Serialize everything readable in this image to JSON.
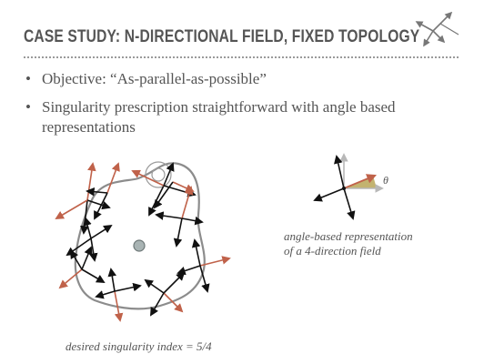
{
  "title": "CASE STUDY: N-DIRECTIONAL FIELD, FIXED TOPOLOGY",
  "bullets": [
    "Objective: “As-parallel-as-possible”",
    "Singularity prescription straightforward with angle based representations"
  ],
  "figure_right": {
    "theta_label": "θ",
    "caption_line1": "angle-based representation",
    "caption_line2": "of a 4-direction field"
  },
  "figure_left": {
    "caption": "desired singularity index = 5/4"
  },
  "colors": {
    "text": "#555555",
    "arrow_black": "#111111",
    "arrow_red": "#c0624a",
    "curve": "#8c8c8c",
    "axis_gray": "#b8b8b8",
    "wedge_fill": "#b8a657"
  },
  "icons": [
    "logo-arrows-icon",
    "singularity-dot-icon"
  ]
}
